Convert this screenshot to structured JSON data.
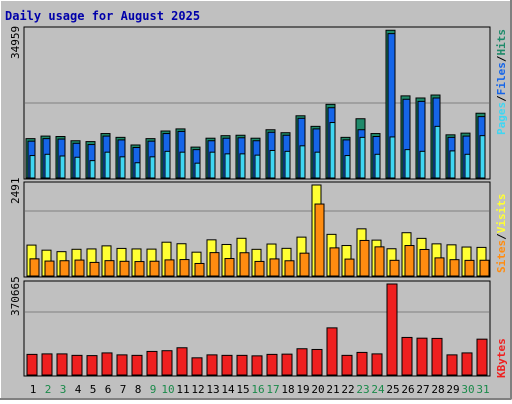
{
  "chart_data": {
    "type": "bar",
    "title": "Daily usage for August 2025",
    "days": [
      "1",
      "2",
      "3",
      "4",
      "5",
      "6",
      "7",
      "8",
      "9",
      "10",
      "11",
      "12",
      "13",
      "14",
      "15",
      "16",
      "17",
      "18",
      "19",
      "20",
      "21",
      "22",
      "23",
      "24",
      "25",
      "26",
      "27",
      "28",
      "29",
      "30",
      "31"
    ],
    "weekend_days": [
      "2",
      "3",
      "9",
      "10",
      "16",
      "17",
      "23",
      "24",
      "30",
      "31"
    ],
    "colors": {
      "hits": "#1f8a6a",
      "files": "#1565e8",
      "pages": "#3fd6f2",
      "visits": "#ffff33",
      "sites": "#ff8c10",
      "kbytes": "#ef2020",
      "weekday_label": "#000000",
      "weekend_label": "#1a8a4a",
      "title": "#0000aa",
      "background": "#c0c0c0"
    },
    "panels": [
      {
        "name": "hits-files-pages",
        "max_label": "34959",
        "ymax": 34959,
        "legend": [
          {
            "text": "Hits",
            "color": "#1f8a6a"
          },
          {
            "text": "/",
            "color": "#000000"
          },
          {
            "text": "Files",
            "color": "#1565e8"
          },
          {
            "text": "/",
            "color": "#000000"
          },
          {
            "text": "Pages",
            "color": "#3fd6f2"
          }
        ],
        "series": [
          {
            "name": "Hits",
            "values": [
              9300,
              9900,
              9800,
              8800,
              8600,
              10500,
              9600,
              7800,
              9300,
              11100,
              11600,
              7300,
              9400,
              10000,
              10100,
              9400,
              11400,
              10700,
              14700,
              12200,
              17400,
              9600,
              14000,
              10500,
              34900,
              19400,
              18900,
              19600,
              10200,
              10600,
              15300
            ]
          },
          {
            "name": "Files",
            "values": [
              8700,
              9300,
              9200,
              8200,
              7900,
              9900,
              9000,
              7200,
              8700,
              10500,
              11000,
              6700,
              8800,
              9400,
              9500,
              8800,
              10800,
              10100,
              14100,
              11600,
              16600,
              9000,
              11400,
              9800,
              34100,
              18600,
              18100,
              18900,
              9600,
              9900,
              14500
            ]
          },
          {
            "name": "Pages",
            "values": [
              5300,
              5600,
              5200,
              4900,
              4100,
              6100,
              5000,
              3600,
              5000,
              6300,
              6100,
              3500,
              6100,
              5700,
              5700,
              5400,
              6500,
              6300,
              7600,
              6100,
              13100,
              5300,
              9600,
              5600,
              9700,
              6700,
              6300,
              12200,
              6400,
              5600,
              10000
            ]
          }
        ]
      },
      {
        "name": "visits-sites",
        "max_label": "2491",
        "ymax": 2491,
        "legend": [
          {
            "text": "Visits",
            "color": "#ffff33"
          },
          {
            "text": "/",
            "color": "#000000"
          },
          {
            "text": "Sites",
            "color": "#ff8c10"
          }
        ],
        "series": [
          {
            "name": "Visits",
            "values": [
              846,
              707,
              666,
              731,
              741,
              825,
              755,
              741,
              736,
              925,
              883,
              652,
              990,
              863,
              1032,
              730,
              875,
              757,
              1064,
              2491,
              1140,
              834,
              1291,
              982,
              746,
              1185,
              1030,
              880,
              853,
              793,
              783
            ]
          },
          {
            "name": "Sites",
            "values": [
              470,
              409,
              418,
              436,
              372,
              420,
              402,
              395,
              404,
              441,
              450,
              343,
              640,
              478,
              637,
              399,
              468,
              417,
              625,
              1970,
              770,
              463,
              973,
              798,
              429,
              834,
              726,
              496,
              447,
              428,
              431
            ]
          }
        ]
      },
      {
        "name": "kbytes",
        "max_label": "370665",
        "ymax": 370665,
        "legend": [
          {
            "text": "KBytes",
            "color": "#ef2020"
          }
        ],
        "series": [
          {
            "name": "KBytes",
            "values": [
              84000,
              86000,
              86000,
              80000,
              79000,
              90000,
              82000,
              80000,
              96000,
              99000,
              111000,
              70000,
              82000,
              80000,
              80000,
              78000,
              84000,
              85000,
              107000,
              104000,
              192000,
              80000,
              92000,
              86000,
              370665,
              153000,
              150000,
              149000,
              82000,
              90000,
              146000
            ]
          }
        ]
      }
    ]
  }
}
